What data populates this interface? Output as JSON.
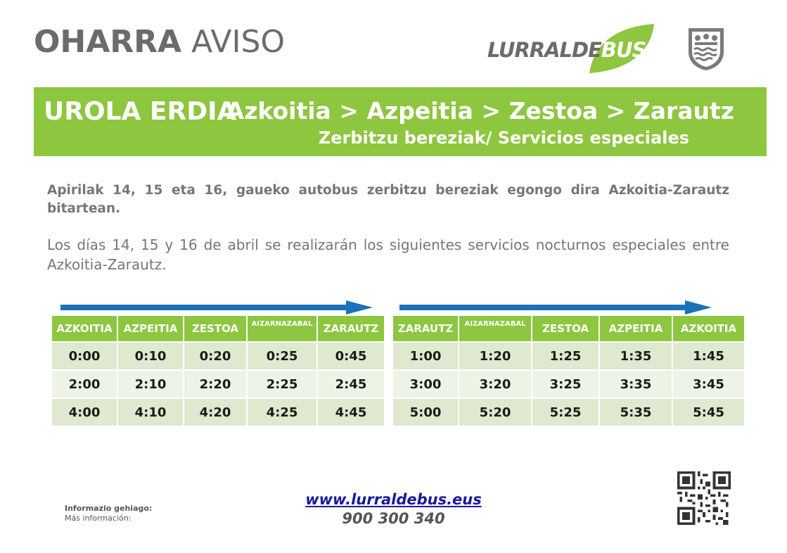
{
  "header": {
    "title_bold": "OHARRA",
    "title_normal": "AVISO",
    "logo": {
      "word_part1": "LURRALDE",
      "word_part2": "BUS",
      "leaf_color": "#8dc63f"
    },
    "emblem": {
      "icon": "gipuzkoa-shield-icon"
    }
  },
  "banner": {
    "zone": "UROLA ERDIA",
    "route": "Azkoitia > Azpeitia > Zestoa > Zarautz",
    "subtitle": "Zerbitzu bereziak/ Servicios especiales",
    "color": "#8dc63f"
  },
  "body": {
    "paragraph_eu": "Apirilak 14, 15 eta 16, gaueko autobus zerbitzu bereziak egongo dira Azkoitia-Zarautz bitartean.",
    "paragraph_es": "Los días 14, 15 y 16 de abril se realizarán los siguientes servicios nocturnos especiales entre Azkoitia-Zarautz."
  },
  "timetables": [
    {
      "direction_icon": "arrow-right-icon",
      "headers": [
        "AZKOITIA",
        "AZPEITIA",
        "ZESTOA",
        "AIZARNAZABAL",
        "ZARAUTZ"
      ],
      "rows": [
        [
          "0:00",
          "0:10",
          "0:20",
          "0:25",
          "0:45"
        ],
        [
          "2:00",
          "2:10",
          "2:20",
          "2:25",
          "2:45"
        ],
        [
          "4:00",
          "4:10",
          "4:20",
          "4:25",
          "4:45"
        ]
      ]
    },
    {
      "direction_icon": "arrow-right-icon",
      "headers": [
        "ZARAUTZ",
        "AIZARNAZABAL",
        "ZESTOA",
        "AZPEITIA",
        "AZKOITIA"
      ],
      "rows": [
        [
          "1:00",
          "1:20",
          "1:25",
          "1:35",
          "1:45"
        ],
        [
          "3:00",
          "3:20",
          "3:25",
          "3:35",
          "3:45"
        ],
        [
          "5:00",
          "5:20",
          "5:25",
          "5:35",
          "5:45"
        ]
      ]
    }
  ],
  "footer": {
    "info_eu": "Informazio gehiago:",
    "info_es": "Más información:",
    "website": "www.lurraldebus.eus",
    "phone": "900 300 340",
    "qr_icon": "qr-code-icon"
  },
  "colors": {
    "accent_green": "#8dc63f",
    "arrow_blue": "#1a72b8",
    "text_gray": "#767676",
    "link_blue": "#1a1a9c"
  }
}
